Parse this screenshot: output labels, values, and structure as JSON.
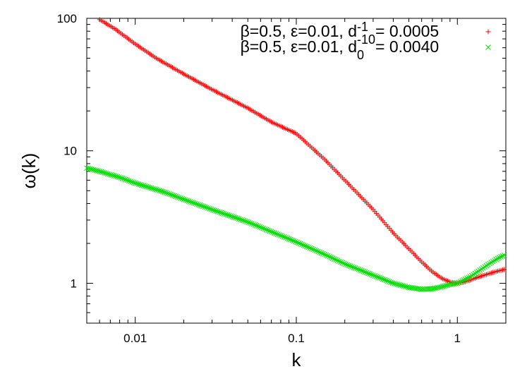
{
  "chart_data": {
    "type": "scatter",
    "title": "",
    "xlabel": "k",
    "ylabel": "ω(k)",
    "xscale": "log",
    "yscale": "log",
    "xlim": [
      0.005,
      2
    ],
    "ylim": [
      0.5,
      100
    ],
    "xticks": [
      {
        "value": 0.01,
        "label": "0.01"
      },
      {
        "value": 0.1,
        "label": "0.1"
      },
      {
        "value": 1,
        "label": "1"
      }
    ],
    "yticks": [
      {
        "value": 1,
        "label": "1"
      },
      {
        "value": 10,
        "label": "10"
      },
      {
        "value": 100,
        "label": "100"
      }
    ],
    "grid": false,
    "legend_position": "top-right",
    "series": [
      {
        "name": "β=0.5, ε=0.01, d_{-10}^{-1} = 0.0005",
        "legend_main": "β=0.5, ε=0.01, d",
        "legend_sup": "-1",
        "legend_sub": "-10",
        "legend_value": " = 0.0005",
        "marker": "+",
        "color": "#ff0000",
        "points": [
          [
            0.005,
            130
          ],
          [
            0.006,
            98
          ],
          [
            0.0075,
            83
          ],
          [
            0.01,
            64
          ],
          [
            0.0135,
            50
          ],
          [
            0.02,
            38
          ],
          [
            0.03,
            29
          ],
          [
            0.05,
            21
          ],
          [
            0.07,
            16.5
          ],
          [
            0.1,
            13.5
          ],
          [
            0.15,
            8.6
          ],
          [
            0.2,
            6.0
          ],
          [
            0.3,
            3.6
          ],
          [
            0.4,
            2.4
          ],
          [
            0.5,
            1.82
          ],
          [
            0.6,
            1.45
          ],
          [
            0.7,
            1.22
          ],
          [
            0.8,
            1.09
          ],
          [
            0.9,
            1.02
          ],
          [
            1.0,
            1.0
          ],
          [
            1.1,
            1.02
          ],
          [
            1.2,
            1.06
          ],
          [
            1.4,
            1.13
          ],
          [
            1.6,
            1.19
          ],
          [
            1.8,
            1.24
          ],
          [
            2.0,
            1.28
          ]
        ]
      },
      {
        "name": "β=0.5, ε=0.01, d_0 = 0.0040",
        "legend_main": "β=0.5, ε=0.01, d",
        "legend_sup": "",
        "legend_sub": "0",
        "legend_value": " = 0.0040",
        "marker": "x",
        "color": "#00dd00",
        "points": [
          [
            0.005,
            7.4
          ],
          [
            0.006,
            7.0
          ],
          [
            0.008,
            6.3
          ],
          [
            0.01,
            5.7
          ],
          [
            0.015,
            4.9
          ],
          [
            0.02,
            4.3
          ],
          [
            0.03,
            3.6
          ],
          [
            0.05,
            2.9
          ],
          [
            0.07,
            2.45
          ],
          [
            0.1,
            2.05
          ],
          [
            0.15,
            1.65
          ],
          [
            0.2,
            1.4
          ],
          [
            0.3,
            1.15
          ],
          [
            0.4,
            1.0
          ],
          [
            0.5,
            0.93
          ],
          [
            0.6,
            0.9
          ],
          [
            0.7,
            0.91
          ],
          [
            0.8,
            0.94
          ],
          [
            0.9,
            0.98
          ],
          [
            1.0,
            1.0
          ],
          [
            1.2,
            1.12
          ],
          [
            1.4,
            1.27
          ],
          [
            1.6,
            1.42
          ],
          [
            1.8,
            1.55
          ],
          [
            2.0,
            1.65
          ]
        ]
      }
    ]
  }
}
